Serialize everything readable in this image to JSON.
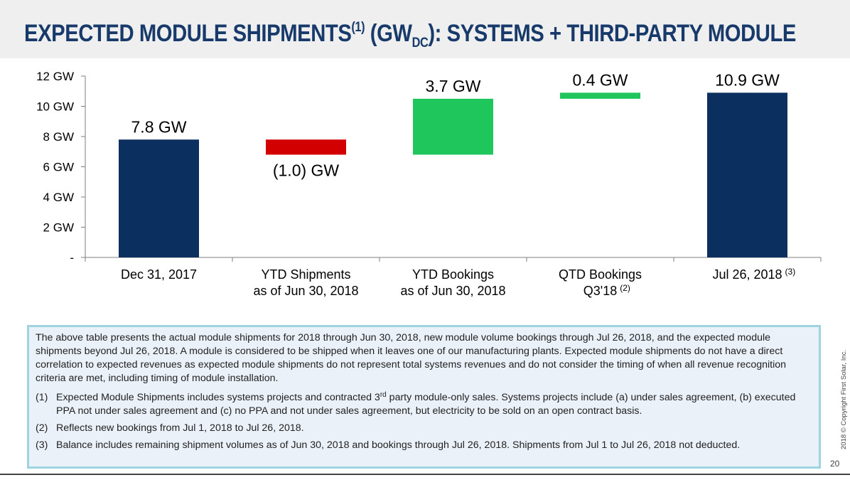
{
  "slide": {
    "title_main": "EXPECTED MODULE SHIPMENTS",
    "title_sup": "(1)",
    "title_unit_open": " (GW",
    "title_unit_sub": "DC",
    "title_rest": "): SYSTEMS + THIRD-PARTY MODULE",
    "copyright": "2018 © Copyright First Solar, Inc.",
    "page_number": "20"
  },
  "chart_data": {
    "type": "bar",
    "subtype": "waterfall",
    "categories": [
      {
        "lines": [
          "Dec 31, 2017"
        ],
        "sup": ""
      },
      {
        "lines": [
          "YTD Shipments",
          "as of Jun 30, 2018"
        ],
        "sup": ""
      },
      {
        "lines": [
          "YTD Bookings",
          "as of Jun 30, 2018"
        ],
        "sup": ""
      },
      {
        "lines": [
          "QTD Bookings",
          "Q3'18"
        ],
        "sup": "(2)"
      },
      {
        "lines": [
          "Jul 26, 2018"
        ],
        "sup": "(3)"
      }
    ],
    "bars": [
      {
        "start": 0,
        "end": 7.8,
        "label": "7.8 GW",
        "color": "#0b2f5e"
      },
      {
        "start": 7.8,
        "end": 6.8,
        "label": "(1.0) GW",
        "color": "#d30000"
      },
      {
        "start": 6.8,
        "end": 10.5,
        "label": "3.7 GW",
        "color": "#1ec65c"
      },
      {
        "start": 10.5,
        "end": 10.9,
        "label": "0.4 GW",
        "color": "#1ec65c"
      },
      {
        "start": 0,
        "end": 10.9,
        "label": "10.9 GW",
        "color": "#0b2f5e"
      }
    ],
    "y_ticks": [
      {
        "value": 0,
        "label": "-"
      },
      {
        "value": 2,
        "label": "2 GW"
      },
      {
        "value": 4,
        "label": "4 GW"
      },
      {
        "value": 6,
        "label": "6 GW"
      },
      {
        "value": 8,
        "label": "8 GW"
      },
      {
        "value": 10,
        "label": "10 GW"
      },
      {
        "value": 12,
        "label": "12 GW"
      }
    ],
    "ylim": [
      0,
      12
    ],
    "grid": false
  },
  "notes": {
    "intro": "The above table presents the actual module shipments for 2018 through Jun 30, 2018, new module volume bookings through Jul 26, 2018, and the expected module shipments beyond Jul 26, 2018. A module is considered to be shipped when it leaves one of our manufacturing plants. Expected module shipments do not have a direct correlation to expected revenues as expected module shipments do not represent total systems revenues and do not consider the timing of when all revenue recognition criteria are met, including timing of module installation.",
    "fn1_num": "(1)",
    "fn1_a": "Expected Module Shipments includes systems projects and contracted 3",
    "fn1_sup": "rd",
    "fn1_b": " party module-only sales. Systems projects include (a) under sales agreement, (b) executed PPA not under sales agreement and (c) no PPA and not under sales agreement, but electricity to be sold on an open contract basis.",
    "fn2_num": "(2)",
    "fn2": "Reflects new bookings from Jul 1, 2018 to Jul 26, 2018.",
    "fn3_num": "(3)",
    "fn3": "Balance includes remaining shipment volumes as of Jun 30, 2018 and bookings through Jul 26, 2018.  Shipments from Jul 1 to Jul 26, 2018 not deducted."
  }
}
